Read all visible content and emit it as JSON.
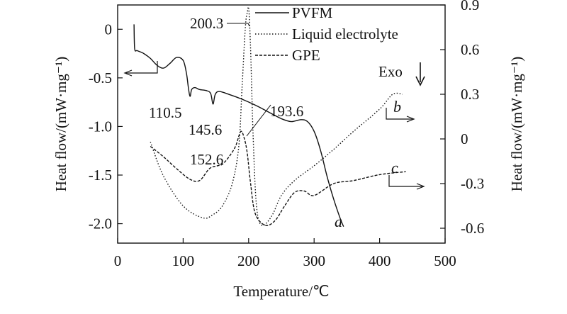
{
  "chart_data": {
    "type": "line",
    "xlabel": "Temperature/℃",
    "ylabel_left": "Heat flow/(mW·mg⁻¹)",
    "ylabel_right": "Heat flow/(mW·mg⁻¹)",
    "x_ticks": [
      "0",
      "100",
      "200",
      "300",
      "400",
      "500"
    ],
    "y_left_ticks": [
      "0",
      "-0.5",
      "-1.0",
      "-1.5",
      "-2.0"
    ],
    "y_right_ticks": [
      "0.9",
      "0.6",
      "0.3",
      "0",
      "-0.3",
      "-0.6"
    ],
    "xlim": [
      0,
      500
    ],
    "ylim_left": [
      -2.2,
      0.25
    ],
    "ylim_right": [
      -0.7,
      0.9
    ],
    "exo_label": "Exo",
    "series": [
      {
        "name": "PVFM",
        "style": "solid",
        "axis": "left",
        "curve_label": "a",
        "x": [
          25,
          26,
          30,
          40,
          50,
          60,
          70,
          80,
          90,
          100,
          105,
          108,
          110.5,
          113,
          118,
          125,
          135,
          142,
          145.6,
          149,
          155,
          170,
          190,
          210,
          230,
          250,
          265,
          280,
          290,
          300,
          310,
          320,
          330,
          340,
          345
        ],
        "y": [
          0.05,
          -0.2,
          -0.22,
          -0.25,
          -0.3,
          -0.37,
          -0.4,
          -0.35,
          -0.29,
          -0.32,
          -0.45,
          -0.6,
          -0.69,
          -0.62,
          -0.6,
          -0.62,
          -0.63,
          -0.66,
          -0.77,
          -0.67,
          -0.64,
          -0.67,
          -0.72,
          -0.78,
          -0.85,
          -0.92,
          -0.95,
          -0.93,
          -0.95,
          -1.05,
          -1.25,
          -1.52,
          -1.75,
          -1.95,
          -2.03
        ]
      },
      {
        "name": "Liquid electrolyte",
        "style": "dotted",
        "axis": "right",
        "curve_label": "b",
        "x": [
          50,
          70,
          100,
          130,
          145,
          160,
          175,
          185,
          190,
          195,
          198,
          200.3,
          203,
          207,
          212,
          220,
          235,
          250,
          270,
          300,
          330,
          360,
          400,
          420,
          435
        ],
        "y": [
          -0.02,
          -0.25,
          -0.45,
          -0.53,
          -0.51,
          -0.45,
          -0.3,
          -0.05,
          0.35,
          0.75,
          0.85,
          0.87,
          0.6,
          0.0,
          -0.45,
          -0.58,
          -0.52,
          -0.38,
          -0.28,
          -0.18,
          -0.07,
          0.05,
          0.2,
          0.3,
          0.3
        ]
      },
      {
        "name": "GPE",
        "style": "dashed",
        "axis": "right",
        "curve_label": "c",
        "x": [
          50,
          70,
          90,
          110,
          125,
          140,
          152.6,
          160,
          170,
          180,
          188,
          193.6,
          198,
          203,
          210,
          225,
          240,
          255,
          270,
          285,
          300,
          330,
          360,
          400,
          440
        ],
        "y": [
          -0.05,
          -0.12,
          -0.2,
          -0.27,
          -0.28,
          -0.2,
          -0.18,
          -0.17,
          -0.12,
          -0.05,
          0.05,
          0.0,
          -0.1,
          -0.3,
          -0.5,
          -0.58,
          -0.55,
          -0.45,
          -0.36,
          -0.35,
          -0.38,
          -0.3,
          -0.28,
          -0.24,
          -0.22
        ]
      }
    ],
    "annotations": [
      {
        "text": "200.3",
        "x": 200.3
      },
      {
        "text": "110.5",
        "x": 110.5
      },
      {
        "text": "145.6",
        "x": 145.6
      },
      {
        "text": "193.6",
        "x": 193.6
      },
      {
        "text": "152.6",
        "x": 152.6
      }
    ],
    "grid": false,
    "legend_position": "top-center"
  }
}
